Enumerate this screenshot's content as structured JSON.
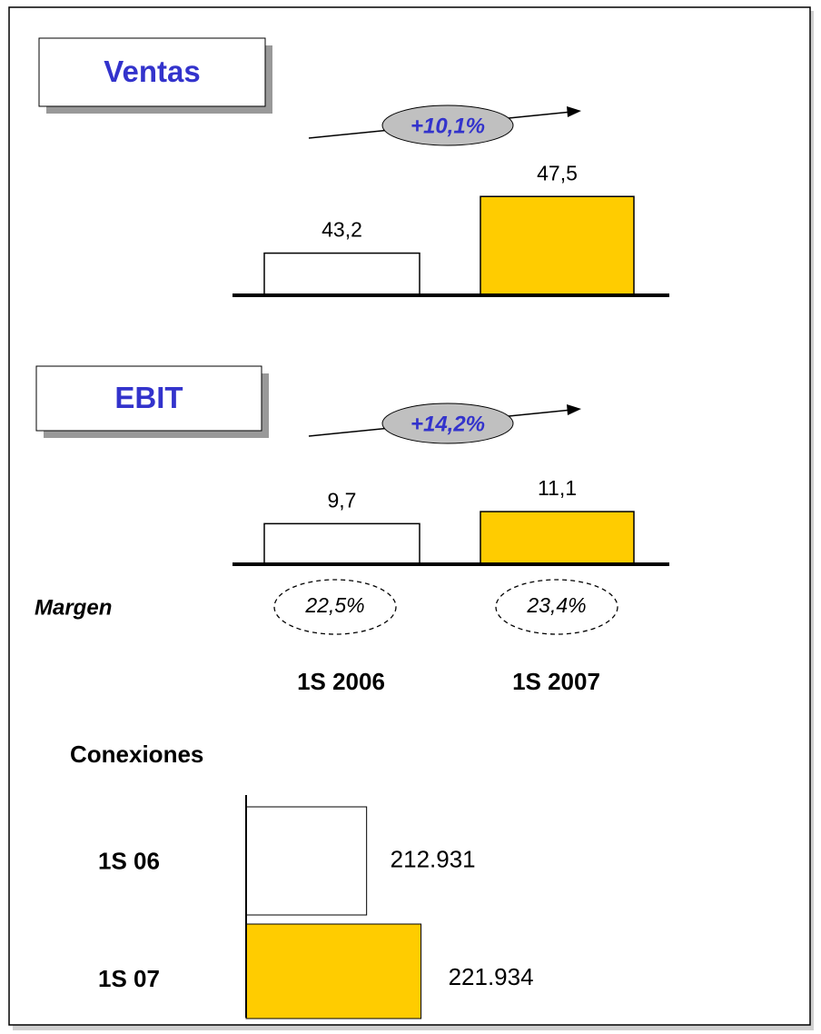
{
  "chart_data": [
    {
      "type": "bar",
      "title": "Ventas",
      "categories": [
        null,
        null
      ],
      "values": [
        43.2,
        47.5
      ],
      "value_labels": [
        "43,2",
        "47,5"
      ],
      "colors": [
        "#ffffff",
        "#ffcc00"
      ],
      "ylim": [
        40,
        50
      ],
      "annotation": "+10,1%"
    },
    {
      "type": "bar",
      "title": "EBIT",
      "categories": [
        "1S 2006",
        "1S 2007"
      ],
      "values": [
        9.7,
        11.1
      ],
      "value_labels": [
        "9,7",
        "11,1"
      ],
      "colors": [
        "#ffffff",
        "#ffcc00"
      ],
      "ylim": [
        5,
        12
      ],
      "annotation": "+14,2%",
      "margin": {
        "label": "Margen",
        "values": [
          22.5,
          23.4
        ],
        "value_labels": [
          "22,5%",
          "23,4%"
        ]
      }
    },
    {
      "type": "barh",
      "title": "Conexiones",
      "categories": [
        "1S 06",
        "1S 07"
      ],
      "values": [
        212931,
        221934
      ],
      "value_labels": [
        "212.931",
        "221.934"
      ],
      "colors": [
        "#ffffff",
        "#ffcc00"
      ],
      "xlim": [
        193000,
        225000
      ]
    }
  ]
}
